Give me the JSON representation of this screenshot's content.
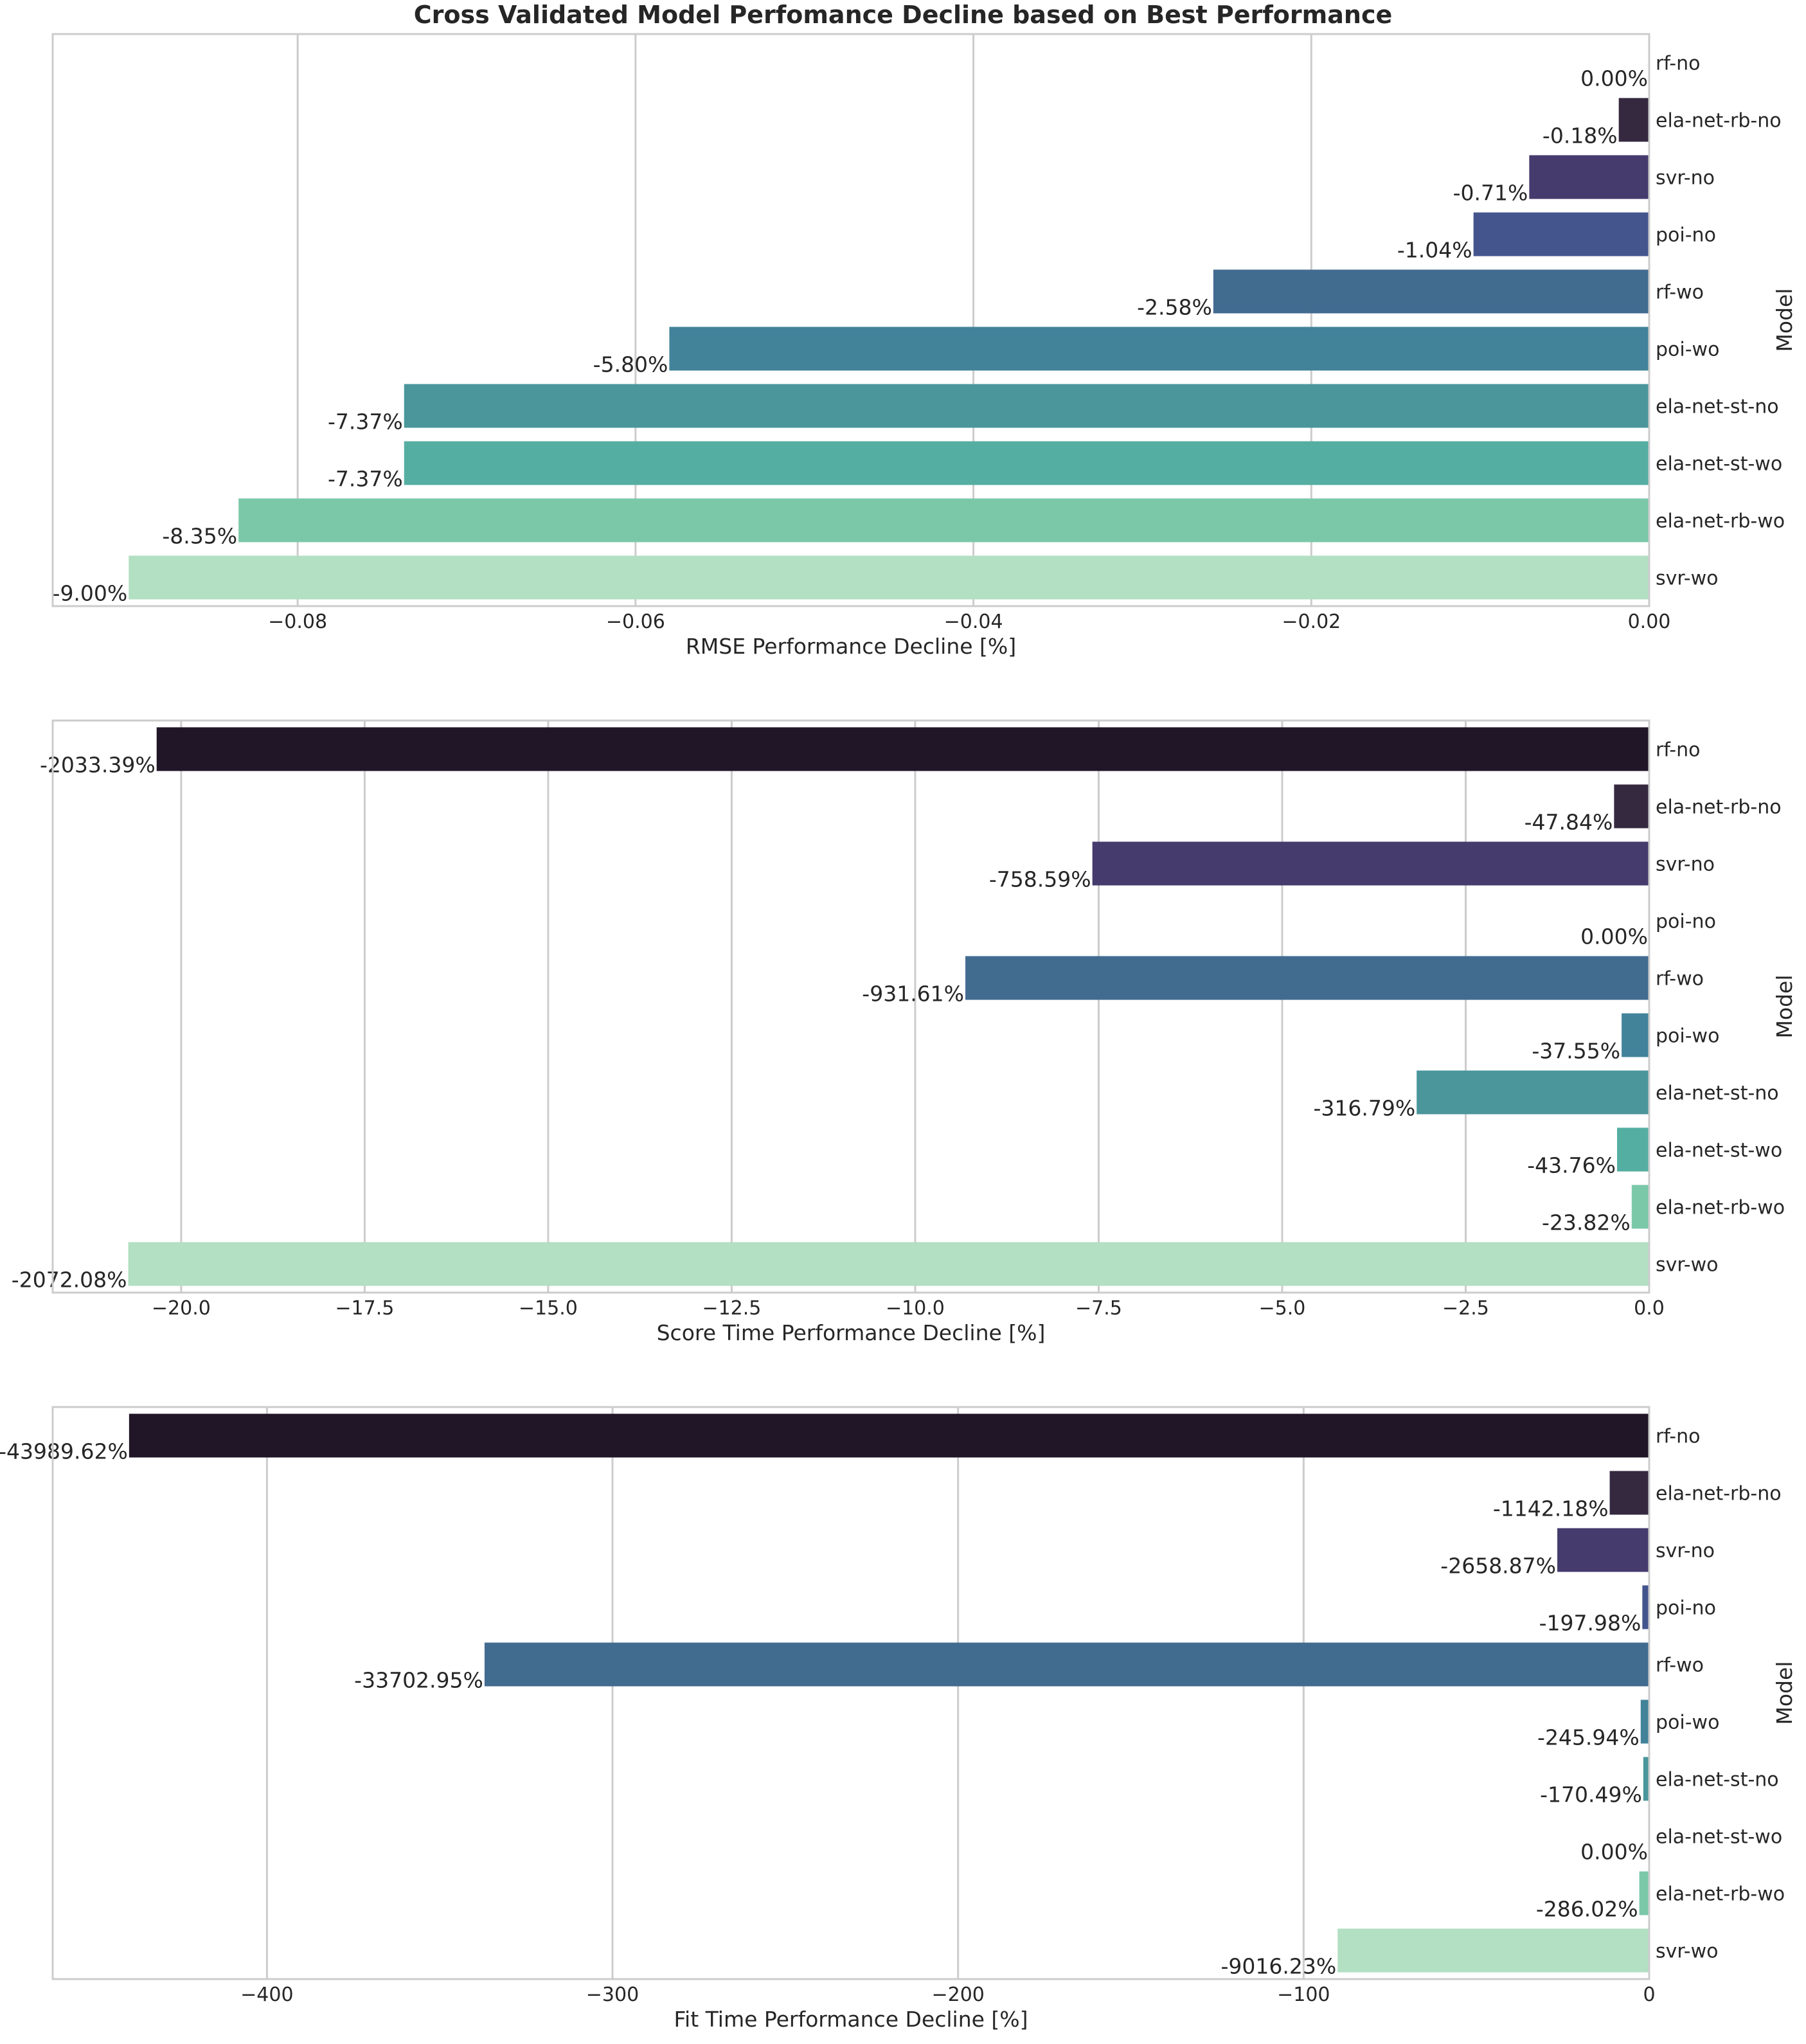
{
  "figure_title": "Cross Validated Model Perfomance Decline based on Best Performance",
  "palette": [
    "#211628",
    "#35293f",
    "#453b6d",
    "#44558e",
    "#426b90",
    "#42839a",
    "#4a969b",
    "#55aea2",
    "#7bc8a9",
    "#b3dfc2"
  ],
  "grid_color": "#cccccc",
  "frame_color": "#cccccc",
  "chart_data": [
    {
      "type": "bar",
      "orientation": "horizontal",
      "categories": [
        "rf-no",
        "ela-net-rb-no",
        "svr-no",
        "poi-no",
        "rf-wo",
        "poi-wo",
        "ela-net-st-no",
        "ela-net-st-wo",
        "ela-net-rb-wo",
        "svr-wo"
      ],
      "values": [
        0.0,
        -0.0018,
        -0.0071,
        -0.0104,
        -0.0258,
        -0.058,
        -0.0737,
        -0.0737,
        -0.0835,
        -0.09
      ],
      "data_labels": [
        "0.00%",
        "-0.18%",
        "-0.71%",
        "-1.04%",
        "-2.58%",
        "-5.80%",
        "-7.37%",
        "-7.37%",
        "-8.35%",
        "-9.00%"
      ],
      "xlabel": "RMSE Performance Decline [%]",
      "ylabel": "Model",
      "xlim": [
        -0.0945,
        0.0
      ],
      "xticks": [
        -0.08,
        -0.06,
        -0.04,
        -0.02,
        0.0
      ],
      "xtick_labels": [
        "−0.08",
        "−0.06",
        "−0.04",
        "−0.02",
        "0.00"
      ],
      "grid": true
    },
    {
      "type": "bar",
      "orientation": "horizontal",
      "categories": [
        "rf-no",
        "ela-net-rb-no",
        "svr-no",
        "poi-no",
        "rf-wo",
        "poi-wo",
        "ela-net-st-no",
        "ela-net-st-wo",
        "ela-net-rb-wo",
        "svr-wo"
      ],
      "values": [
        -20.3339,
        -0.4784,
        -7.5859,
        0.0,
        -9.3161,
        -0.3755,
        -3.1679,
        -0.4376,
        -0.2382,
        -20.7208
      ],
      "data_labels": [
        "-2033.39%",
        "-47.84%",
        "-758.59%",
        "0.00%",
        "-931.61%",
        "-37.55%",
        "-316.79%",
        "-43.76%",
        "-23.82%",
        "-2072.08%"
      ],
      "xlabel": "Score Time Performance Decline [%]",
      "ylabel": "Model",
      "xlim": [
        -21.75,
        0.0
      ],
      "xticks": [
        -20.0,
        -17.5,
        -15.0,
        -12.5,
        -10.0,
        -7.5,
        -5.0,
        -2.5,
        0.0
      ],
      "xtick_labels": [
        "−20.0",
        "−17.5",
        "−15.0",
        "−12.5",
        "−10.0",
        "−7.5",
        "−5.0",
        "−2.5",
        "0.0"
      ],
      "grid": true
    },
    {
      "type": "bar",
      "orientation": "horizontal",
      "categories": [
        "rf-no",
        "ela-net-rb-no",
        "svr-no",
        "poi-no",
        "rf-wo",
        "poi-wo",
        "ela-net-st-no",
        "ela-net-st-wo",
        "ela-net-rb-wo",
        "svr-wo"
      ],
      "values": [
        -439.8962,
        -11.4218,
        -26.5887,
        -1.9798,
        -337.0295,
        -2.4594,
        -1.7049,
        0.0,
        -2.8602,
        -90.1623
      ],
      "data_labels": [
        "-43989.62%",
        "-1142.18%",
        "-2658.87%",
        "-197.98%",
        "-33702.95%",
        "-245.94%",
        "-170.49%",
        "0.00%",
        "-286.02%",
        "-9016.23%"
      ],
      "xlabel": "Fit Time Performance Decline [%]",
      "ylabel": "Model",
      "xlim": [
        -462.0,
        0.0
      ],
      "xticks": [
        -400,
        -300,
        -200,
        -100,
        0
      ],
      "xtick_labels": [
        "−400",
        "−300",
        "−200",
        "−100",
        "0"
      ],
      "grid": true
    }
  ]
}
